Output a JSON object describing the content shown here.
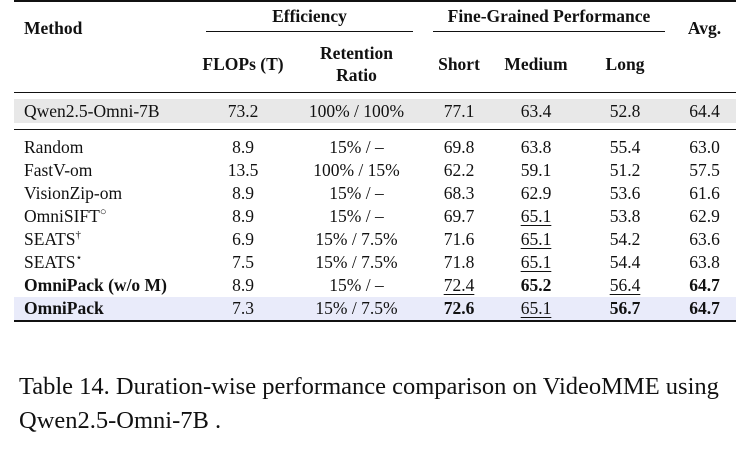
{
  "table": {
    "header": {
      "method": "Method",
      "efficiency": "Efficiency",
      "fine_grained": "Fine-Grained Performance",
      "avg": "Avg.",
      "flops": "FLOPs (T)",
      "retention_line1": "Retention",
      "retention_line2": "Ratio",
      "short": "Short",
      "medium": "Medium",
      "long": "Long"
    },
    "baseline": {
      "method": "Qwen2.5-Omni-7B",
      "flops": "73.2",
      "retention": "100% / 100%",
      "short": "77.1",
      "medium": "63.4",
      "long": "52.8",
      "avg": "64.4"
    },
    "rows": [
      {
        "method": "Random",
        "sup": "",
        "flops": "8.9",
        "retention": "15% / –",
        "short": "69.8",
        "medium": "63.8",
        "long": "55.4",
        "avg": "63.0"
      },
      {
        "method": "FastV-om",
        "sup": "",
        "flops": "13.5",
        "retention": "100% / 15%",
        "short": "62.2",
        "medium": "59.1",
        "long": "51.2",
        "avg": "57.5"
      },
      {
        "method": "VisionZip-om",
        "sup": "",
        "flops": "8.9",
        "retention": "15% / –",
        "short": "68.3",
        "medium": "62.9",
        "long": "53.6",
        "avg": "61.6"
      },
      {
        "method": "OmniSIFT",
        "sup": "○",
        "flops": "8.9",
        "retention": "15% / –",
        "short": "69.7",
        "medium": "65.1",
        "long": "53.8",
        "avg": "62.9"
      },
      {
        "method": "SEATS",
        "sup": "†",
        "flops": "6.9",
        "retention": "15% / 7.5%",
        "short": "71.6",
        "medium": "65.1",
        "long": "54.2",
        "avg": "63.6"
      },
      {
        "method": "SEATS",
        "sup": "⋆",
        "flops": "7.5",
        "retention": "15% / 7.5%",
        "short": "71.8",
        "medium": "65.1",
        "long": "54.4",
        "avg": "63.8"
      },
      {
        "method": "OmniPack (w/o M)",
        "sup": "",
        "flops": "8.9",
        "retention": "15% / –",
        "short": "72.4",
        "medium": "65.2",
        "long": "56.4",
        "avg": "64.7"
      },
      {
        "method": "OmniPack",
        "sup": "",
        "flops": "7.3",
        "retention": "15% / 7.5%",
        "short": "72.6",
        "medium": "65.1",
        "long": "56.7",
        "avg": "64.7"
      }
    ]
  },
  "caption": "Table 14. Duration-wise performance comparison on VideoMME using Qwen2.5-Omni-7B ."
}
